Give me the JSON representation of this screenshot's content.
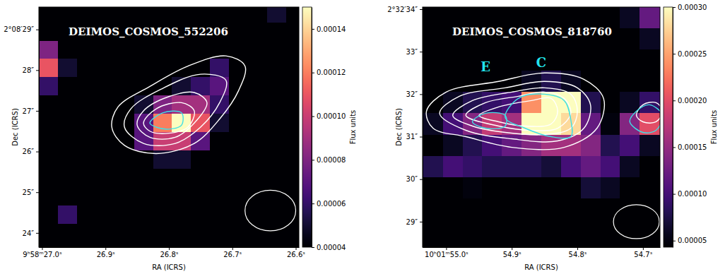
{
  "chart_data": [
    {
      "type": "heatmap",
      "title": "DEIMOS_COSMOS_552206",
      "xlabel": "RA (ICRS)",
      "ylabel": "Dec (ICRS)",
      "xlim": [
        27.005,
        26.595
      ],
      "xticks": [
        {
          "value": 27.0,
          "label": "9ʰ58ᵐ27.0ˢ"
        },
        {
          "value": 26.9,
          "label": "26.9ˢ"
        },
        {
          "value": 26.8,
          "label": "26.8ˢ"
        },
        {
          "value": 26.7,
          "label": "26.7ˢ"
        },
        {
          "value": 26.6,
          "label": "26.6ˢ"
        }
      ],
      "ylim": [
        23.65,
        29.55
      ],
      "yticks": [
        {
          "value": 29,
          "label": "2°08′29″"
        },
        {
          "value": 28,
          "label": "28″"
        },
        {
          "value": 27,
          "label": "27″"
        },
        {
          "value": 26,
          "label": "26″"
        },
        {
          "value": 25,
          "label": "25″"
        },
        {
          "value": 24,
          "label": "24″"
        }
      ],
      "image": {
        "x": [
          26.99,
          26.96,
          26.93,
          26.9,
          26.87,
          26.84,
          26.81,
          26.78,
          26.75,
          26.72,
          26.69,
          26.66,
          26.63,
          26.6
        ],
        "y": [
          29.4,
          28.95,
          28.5,
          28.05,
          27.6,
          27.15,
          26.7,
          26.25,
          25.8,
          25.35,
          24.9,
          24.45,
          24.0,
          23.55
        ],
        "values": [
          [
            3e-05,
            3e-05,
            3e-05,
            3e-05,
            3e-05,
            3e-05,
            3e-05,
            3e-05,
            3e-05,
            3e-05,
            3e-05,
            3e-05,
            5e-05,
            3e-05
          ],
          [
            3e-05,
            3e-05,
            3e-05,
            3e-05,
            3e-05,
            3e-05,
            3e-05,
            3e-05,
            3e-05,
            3e-05,
            3e-05,
            3e-05,
            3e-05,
            3e-05
          ],
          [
            8e-05,
            3e-05,
            3e-05,
            3e-05,
            3e-05,
            3e-05,
            3e-05,
            3e-05,
            3e-05,
            3e-05,
            3e-05,
            3e-05,
            3e-05,
            3e-05
          ],
          [
            0.00011,
            5e-05,
            3e-05,
            3e-05,
            3e-05,
            3e-05,
            3e-05,
            3e-05,
            3e-05,
            6e-05,
            3e-05,
            3e-05,
            3e-05,
            3e-05
          ],
          [
            6e-05,
            3e-05,
            3e-05,
            3e-05,
            3e-05,
            3e-05,
            4e-05,
            5e-05,
            6e-05,
            7e-05,
            3e-05,
            3e-05,
            3e-05,
            3e-05
          ],
          [
            3e-05,
            3e-05,
            3e-05,
            3e-05,
            3e-05,
            5e-05,
            8e-05,
            9e-05,
            9e-05,
            6e-05,
            3e-05,
            3e-05,
            3e-05,
            3e-05
          ],
          [
            3e-05,
            3e-05,
            3e-05,
            3e-05,
            4e-05,
            7e-05,
            0.00012,
            0.00015,
            0.00011,
            5e-05,
            3e-05,
            3e-05,
            3e-05,
            3e-05
          ],
          [
            3e-05,
            3e-05,
            3e-05,
            3e-05,
            4e-05,
            7e-05,
            0.0001,
            0.0001,
            7e-05,
            4e-05,
            3e-05,
            3e-05,
            3e-05,
            3e-05
          ],
          [
            3e-05,
            3e-05,
            3e-05,
            3e-05,
            3e-05,
            4e-05,
            5e-05,
            5e-05,
            4e-05,
            3e-05,
            3e-05,
            3e-05,
            3e-05,
            3e-05
          ],
          [
            3e-05,
            3e-05,
            3e-05,
            3e-05,
            3e-05,
            3e-05,
            3e-05,
            3e-05,
            3e-05,
            3e-05,
            3e-05,
            3e-05,
            3e-05,
            3e-05
          ],
          [
            3e-05,
            3e-05,
            3e-05,
            3e-05,
            3e-05,
            3e-05,
            3e-05,
            3e-05,
            3e-05,
            3e-05,
            3e-05,
            3e-05,
            3e-05,
            3e-05
          ],
          [
            3e-05,
            6e-05,
            3e-05,
            3e-05,
            3e-05,
            3e-05,
            3e-05,
            3e-05,
            3e-05,
            3e-05,
            3e-05,
            3e-05,
            3e-05,
            3e-05
          ],
          [
            3e-05,
            3e-05,
            3e-05,
            3e-05,
            3e-05,
            3e-05,
            3e-05,
            3e-05,
            3e-05,
            3e-05,
            3e-05,
            3e-05,
            3e-05,
            3e-05
          ],
          [
            3e-05,
            3e-05,
            3e-05,
            3e-05,
            3e-05,
            3e-05,
            3e-05,
            3e-05,
            3e-05,
            3e-05,
            3e-05,
            3e-05,
            3e-05,
            3e-05
          ]
        ]
      },
      "colorbar": {
        "label": "Flux units",
        "range": [
          4e-05,
          0.00015
        ],
        "ticks": [
          4e-05,
          6e-05,
          8e-05,
          {
            "value": 0.0001,
            "label": "0.00010"
          },
          0.00012,
          0.00014
        ]
      },
      "contours": [
        {
          "color": "white",
          "x": [
            26.89,
            26.88,
            26.83,
            26.77,
            26.71,
            26.68,
            26.69,
            26.72,
            26.76,
            26.82,
            26.87
          ],
          "y": [
            26.6,
            27.1,
            27.6,
            28.1,
            28.35,
            28.1,
            27.5,
            26.8,
            26.2,
            25.95,
            26.15
          ]
        },
        {
          "color": "white",
          "x": [
            26.87,
            26.86,
            26.81,
            26.75,
            26.71,
            26.72,
            26.75,
            26.79,
            26.84
          ],
          "y": [
            26.6,
            27.05,
            27.55,
            27.9,
            27.75,
            27.2,
            26.6,
            26.2,
            26.2
          ]
        },
        {
          "color": "white",
          "x": [
            26.85,
            26.84,
            26.8,
            26.76,
            26.74,
            26.76,
            26.79,
            26.83
          ],
          "y": [
            26.65,
            27.0,
            27.35,
            27.45,
            27.2,
            26.7,
            26.35,
            26.35
          ]
        },
        {
          "color": "white",
          "x": [
            26.84,
            26.82,
            26.78,
            26.76,
            26.77,
            26.8,
            26.83
          ],
          "y": [
            26.7,
            27.05,
            27.2,
            27.0,
            26.6,
            26.45,
            26.5
          ]
        },
        {
          "color": "#3fe0e6",
          "x": [
            26.83,
            26.81,
            26.78,
            26.78,
            26.8,
            26.82
          ],
          "y": [
            26.7,
            26.95,
            26.95,
            26.65,
            26.55,
            26.6
          ]
        }
      ],
      "beam": {
        "x": 26.64,
        "y": 24.55,
        "width": 0.08,
        "height": 1.0
      },
      "annotations": []
    },
    {
      "type": "heatmap",
      "title": "DEIMOS_COSMOS_818760",
      "xlabel": "RA (ICRS)",
      "ylabel": "Dec (ICRS)",
      "xlim": [
        55.036,
        54.674
      ],
      "xticks": [
        {
          "value": 55.0,
          "label": "10ʰ01ᵐ55.0ˢ"
        },
        {
          "value": 54.9,
          "label": "54.9ˢ"
        },
        {
          "value": 54.8,
          "label": "54.8ˢ"
        },
        {
          "value": 54.7,
          "label": "54.7ˢ"
        }
      ],
      "ylim": [
        28.4,
        34.05
      ],
      "yticks": [
        {
          "value": 34,
          "label": "2°32′34″"
        },
        {
          "value": 33,
          "label": "33″"
        },
        {
          "value": 32,
          "label": "32″"
        },
        {
          "value": 31,
          "label": "31″"
        },
        {
          "value": 30,
          "label": "30″"
        },
        {
          "value": 29,
          "label": "29″"
        }
      ],
      "image": {
        "x": [
          55.02,
          54.99,
          54.96,
          54.93,
          54.9,
          54.87,
          54.84,
          54.81,
          54.78,
          54.75,
          54.72,
          54.69
        ],
        "y": [
          33.8,
          33.3,
          32.8,
          32.3,
          31.8,
          31.3,
          30.8,
          30.3,
          29.8,
          29.3,
          28.8,
          28.3
        ],
        "values": [
          [
            4e-05,
            4e-05,
            4e-05,
            4e-05,
            4e-05,
            4e-05,
            4e-05,
            4e-05,
            4e-05,
            4e-05,
            6e-05,
            0.00012
          ],
          [
            4e-05,
            4e-05,
            4e-05,
            4e-05,
            4e-05,
            4e-05,
            4e-05,
            4e-05,
            4e-05,
            4e-05,
            4e-05,
            6e-05
          ],
          [
            4e-05,
            4e-05,
            4e-05,
            4e-05,
            4e-05,
            4e-05,
            4e-05,
            4e-05,
            4e-05,
            4e-05,
            4e-05,
            4e-05
          ],
          [
            4e-05,
            4e-05,
            4e-05,
            4e-05,
            4e-05,
            6e-05,
            8e-05,
            6e-05,
            4e-05,
            4e-05,
            4e-05,
            4e-05
          ],
          [
            4e-05,
            6e-05,
            8e-05,
            9e-05,
            0.0001,
            0.00024,
            0.00035,
            0.0003,
            8e-05,
            4e-05,
            6e-05,
            9e-05
          ],
          [
            6e-05,
            0.0001,
            0.00014,
            0.00018,
            0.00016,
            0.0003,
            0.00035,
            0.00028,
            0.00012,
            5e-05,
            0.00014,
            0.0002
          ],
          [
            4e-05,
            6e-05,
            8e-05,
            0.0001,
            0.00012,
            0.00014,
            0.00016,
            0.00016,
            0.00014,
            8e-05,
            0.0001,
            6e-05
          ],
          [
            8e-05,
            0.0001,
            9e-05,
            8e-05,
            8e-05,
            8e-05,
            7e-05,
            0.0001,
            0.00012,
            0.0001,
            6e-05,
            4e-05
          ],
          [
            4e-05,
            4e-05,
            5e-05,
            4e-05,
            4e-05,
            4e-05,
            4e-05,
            4e-05,
            7e-05,
            6e-05,
            4e-05,
            4e-05
          ],
          [
            4e-05,
            4e-05,
            4e-05,
            4e-05,
            4e-05,
            4e-05,
            4e-05,
            4e-05,
            4e-05,
            4e-05,
            4e-05,
            4e-05
          ],
          [
            4e-05,
            4e-05,
            4e-05,
            4e-05,
            4e-05,
            4e-05,
            4e-05,
            4e-05,
            4e-05,
            4e-05,
            4e-05,
            4e-05
          ],
          [
            4e-05,
            4e-05,
            4e-05,
            4e-05,
            4e-05,
            4e-05,
            4e-05,
            4e-05,
            4e-05,
            4e-05,
            4e-05,
            4e-05
          ]
        ]
      },
      "colorbar": {
        "label": "Flux units",
        "range": [
          4.3e-05,
          0.0003
        ],
        "ticks": [
          5e-05,
          {
            "value": 0.0001,
            "label": "0.00010"
          },
          0.00015,
          {
            "value": 0.0002,
            "label": "0.00020"
          },
          0.00025,
          {
            "value": 0.0003,
            "label": "0.00030"
          }
        ]
      },
      "contours": [
        {
          "color": "white",
          "x": [
            55.03,
            55.0,
            54.92,
            54.85,
            54.79,
            54.76,
            54.77,
            54.82,
            54.9,
            54.97,
            55.02
          ],
          "y": [
            31.6,
            32.05,
            32.3,
            32.5,
            32.35,
            31.9,
            31.2,
            30.75,
            30.75,
            31.0,
            31.2
          ]
        },
        {
          "color": "white",
          "x": [
            55.01,
            54.98,
            54.91,
            54.85,
            54.8,
            54.78,
            54.79,
            54.83,
            54.9,
            54.97
          ],
          "y": [
            31.55,
            31.95,
            32.15,
            32.3,
            32.15,
            31.75,
            31.2,
            30.9,
            30.95,
            31.15
          ]
        },
        {
          "color": "white",
          "x": [
            54.99,
            54.96,
            54.9,
            54.85,
            54.81,
            54.8,
            54.81,
            54.85,
            54.91,
            54.96
          ],
          "y": [
            31.5,
            31.85,
            32.05,
            32.15,
            32.0,
            31.6,
            31.2,
            31.05,
            31.1,
            31.25
          ]
        },
        {
          "color": "white",
          "x": [
            54.97,
            54.94,
            54.89,
            54.85,
            54.82,
            54.81,
            54.83,
            54.87,
            54.92
          ],
          "y": [
            31.5,
            31.8,
            31.95,
            32.05,
            31.9,
            31.55,
            31.2,
            31.15,
            31.25
          ]
        },
        {
          "color": "white",
          "x": [
            54.95,
            54.92,
            54.87,
            54.84,
            54.83,
            54.84,
            54.88,
            54.92
          ],
          "y": [
            31.5,
            31.7,
            31.85,
            31.9,
            31.6,
            31.3,
            31.25,
            31.35
          ]
        },
        {
          "color": "white",
          "x": [
            54.71,
            54.7,
            54.68,
            54.67,
            54.68,
            54.7
          ],
          "y": [
            31.5,
            31.75,
            31.8,
            31.6,
            31.35,
            31.35
          ]
        },
        {
          "color": "#3fe0e6",
          "x": [
            54.91,
            54.89,
            54.85,
            54.82,
            54.81,
            54.81,
            54.84,
            54.88
          ],
          "y": [
            31.45,
            31.9,
            32.0,
            31.85,
            31.4,
            31.0,
            31.0,
            31.2
          ]
        },
        {
          "color": "#3fe0e6",
          "x": [
            54.96,
            54.94,
            54.91,
            54.91,
            54.94
          ],
          "y": [
            31.35,
            31.55,
            31.5,
            31.25,
            31.2
          ]
        },
        {
          "color": "#3fe0e6",
          "x": [
            54.71,
            54.69,
            54.67,
            54.68,
            54.7,
            54.72
          ],
          "y": [
            31.6,
            31.75,
            31.5,
            31.15,
            31.1,
            31.35
          ]
        }
      ],
      "beam": {
        "x": 54.71,
        "y": 29.0,
        "width": 0.07,
        "height": 0.8
      },
      "annotations": [
        {
          "text": "E",
          "x": 54.94,
          "y": 32.65,
          "color": "#22e5ee"
        },
        {
          "text": "C",
          "x": 54.855,
          "y": 32.75,
          "color": "#22e5ee"
        }
      ]
    }
  ]
}
